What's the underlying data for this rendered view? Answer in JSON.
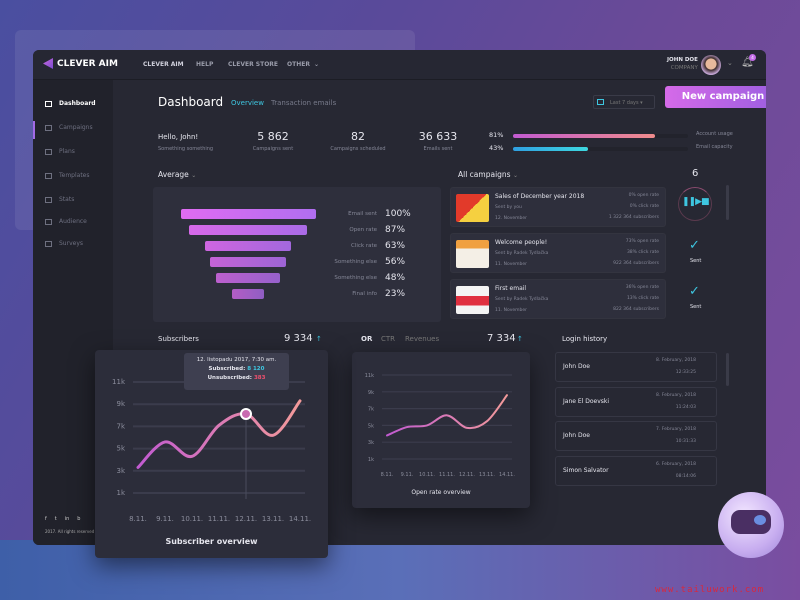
{
  "app": {
    "logo": "CLEVER AIM",
    "nav": [
      "CLEVER AIM",
      "HELP",
      "CLEVER STORE",
      "OTHER"
    ],
    "user_name": "JOHN DOE",
    "user_company": "COMPANY",
    "notifications": "4"
  },
  "sidebar": {
    "items": [
      {
        "label": "Dashboard",
        "active": true
      },
      {
        "label": "Campaigns"
      },
      {
        "label": "Plans"
      },
      {
        "label": "Templates"
      },
      {
        "label": "Stats"
      },
      {
        "label": "Audience"
      },
      {
        "label": "Surveys"
      }
    ],
    "social": [
      "f",
      "t",
      "in",
      "b"
    ],
    "footer": "2017. All rights reserved"
  },
  "header": {
    "title": "Dashboard",
    "tabs": [
      "Overview",
      "Transaction emails"
    ],
    "date_range": "Last 7 days",
    "new_campaign": "New campaign"
  },
  "stats": {
    "greeting": "Hello, John!",
    "greeting_sub": "Something something",
    "items": [
      {
        "value": "5 862",
        "label": "Campaigns sent"
      },
      {
        "value": "82",
        "label": "Campaigns scheduled"
      },
      {
        "value": "36 633",
        "label": "Emails sent"
      }
    ],
    "usage": [
      {
        "percent": "81%",
        "value": 81,
        "label": "Account usage",
        "color": "#e279a8"
      },
      {
        "percent": "43%",
        "value": 43,
        "label": "Email capacity",
        "color": "#3ec6e0"
      }
    ]
  },
  "average": {
    "title": "Average",
    "rows": [
      {
        "label": "Email sent",
        "value": "100%",
        "pct": 100
      },
      {
        "label": "Open rate",
        "value": "87%",
        "pct": 87
      },
      {
        "label": "Click rate",
        "value": "63%",
        "pct": 63
      },
      {
        "label": "Something else",
        "value": "56%",
        "pct": 56
      },
      {
        "label": "Something else",
        "value": "48%",
        "pct": 48
      },
      {
        "label": "Final info",
        "value": "23%",
        "pct": 23
      }
    ]
  },
  "campaigns": {
    "title": "All campaigns",
    "count": "6",
    "items": [
      {
        "name": "Sales of December year 2018",
        "by": "Sent by you",
        "date": "12. November",
        "open": "0% open rate",
        "click": "0% click rate",
        "subs": "1 322 364 subscribers",
        "status": "playing"
      },
      {
        "name": "Welcome people!",
        "by": "Sent by Radek Tydlačka",
        "date": "11. November",
        "open": "73% open rate",
        "click": "38% click rate",
        "subs": "922 364 subscribers",
        "status": "Sent"
      },
      {
        "name": "First email",
        "by": "Sent by Radek Tydlačka",
        "date": "11. November",
        "open": "36% open rate",
        "click": "13% click rate",
        "subs": "822 364 subscribers",
        "status": "Sent"
      }
    ]
  },
  "subscribers": {
    "title": "Subscribers",
    "total": "9 334",
    "caption": "Subscriber overview",
    "tooltip": {
      "date": "12. listopadu 2017, 7:30 am.",
      "subscribed_label": "Subscribed:",
      "subscribed": "8 120",
      "unsubscribed_label": "Unsubscribed:",
      "unsubscribed": "383"
    }
  },
  "openrate": {
    "tabs": [
      "OR",
      "CTR",
      "Revenues"
    ],
    "total": "7 334",
    "caption": "Open rate overview"
  },
  "login_history": {
    "title": "Login history",
    "items": [
      {
        "name": "John Doe",
        "date": "8. February, 2018",
        "time": "12:33:25"
      },
      {
        "name": "Jane El Doevski",
        "date": "8. February, 2018",
        "time": "11:24:03"
      },
      {
        "name": "John Doe",
        "date": "7. February, 2018",
        "time": "10:31:33"
      },
      {
        "name": "Simon Salvator",
        "date": "6. February, 2018",
        "time": "08:14:06"
      }
    ]
  },
  "watermark": "www.tailuwork.com",
  "chart_data": [
    {
      "type": "line",
      "title": "Subscriber overview",
      "categories": [
        "8.11.",
        "9.11.",
        "10.11.",
        "11.11.",
        "12.11.",
        "13.11.",
        "14.11."
      ],
      "y_ticks": [
        "1k",
        "3k",
        "5k",
        "7k",
        "9k",
        "11k"
      ],
      "ylim": [
        1000,
        11000
      ],
      "grid": true,
      "values": [
        3300,
        5600,
        4300,
        7100,
        8120,
        6200,
        9300
      ]
    },
    {
      "type": "line",
      "title": "Open rate overview",
      "categories": [
        "8.11.",
        "9.11.",
        "10.11.",
        "11.11.",
        "12.11.",
        "13.11.",
        "14.11."
      ],
      "y_ticks": [
        "1k",
        "3k",
        "5k",
        "7k",
        "9k",
        "11k"
      ],
      "ylim": [
        1000,
        11000
      ],
      "grid": true,
      "values": [
        3800,
        4800,
        5000,
        6200,
        4700,
        5500,
        8600
      ]
    }
  ]
}
